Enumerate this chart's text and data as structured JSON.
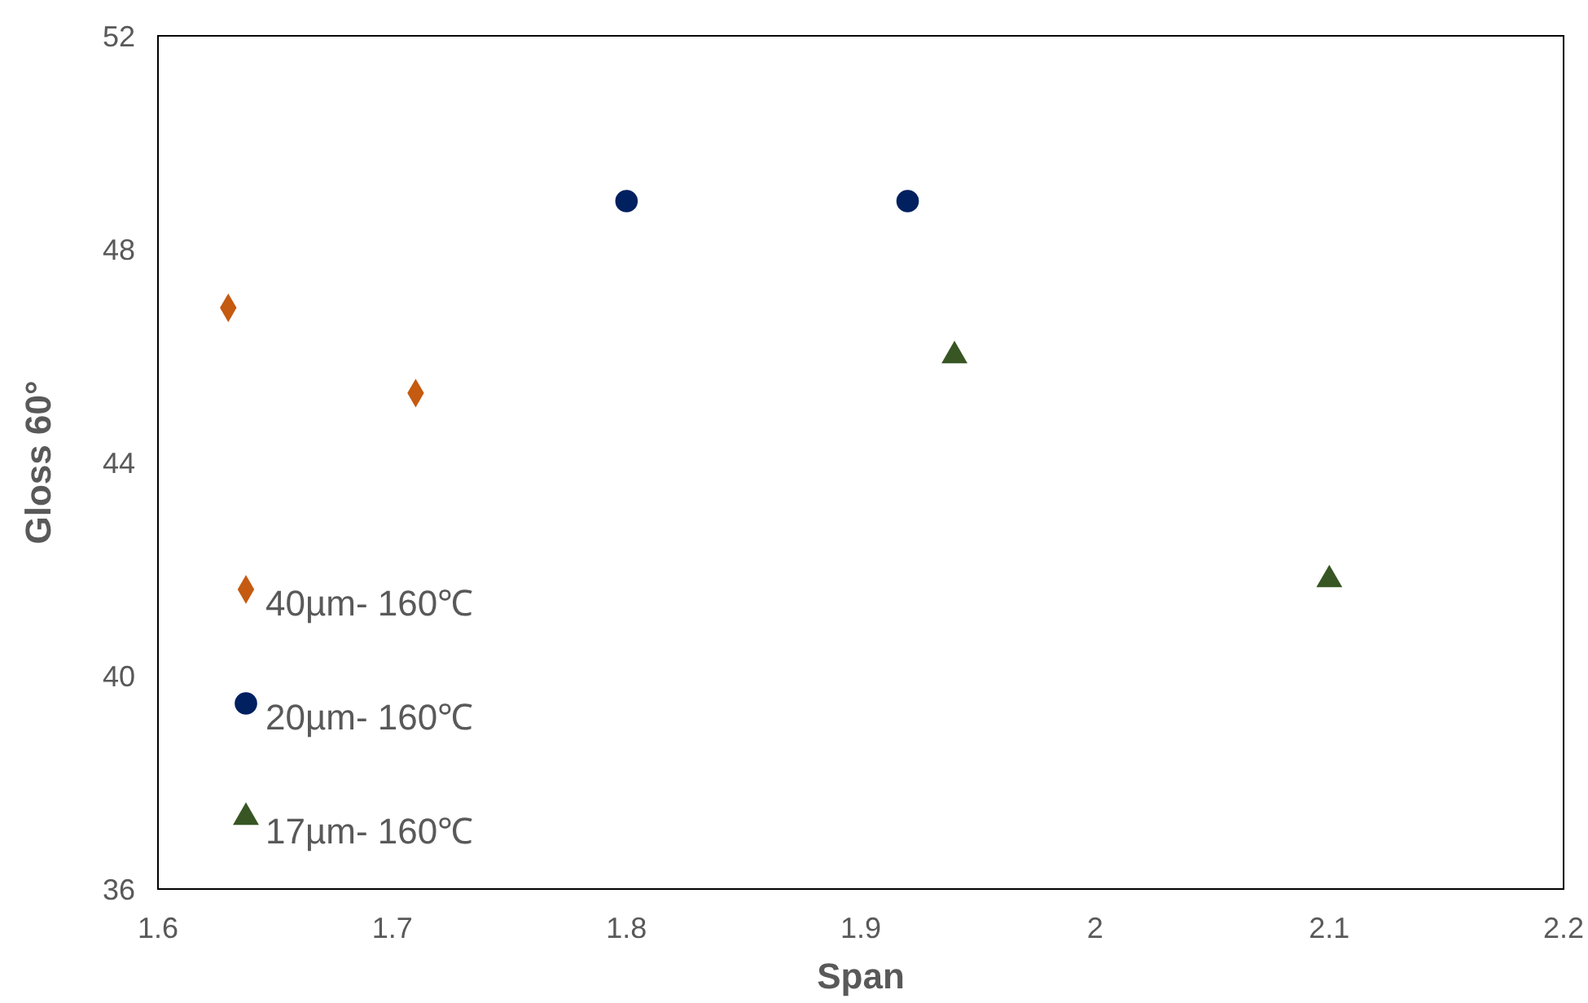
{
  "chart_data": {
    "type": "scatter",
    "xlabel": "Span",
    "ylabel": "Gloss 60°",
    "xlim": [
      1.6,
      2.2
    ],
    "xticks": [
      1.6,
      1.7,
      1.8,
      1.9,
      2,
      2.1,
      2.2
    ],
    "ylim": [
      36,
      52
    ],
    "yticks": [
      36,
      40,
      44,
      48,
      52
    ],
    "grid": false,
    "legend": "bottom left",
    "series": [
      {
        "name": "40µm- 160℃",
        "color": "#c55a11",
        "marker": "diamond",
        "x": [
          1.63,
          1.71
        ],
        "values": [
          46.9,
          45.3
        ]
      },
      {
        "name": "20µm- 160℃",
        "color": "#002060",
        "marker": "circle",
        "x": [
          1.8,
          1.92
        ],
        "values": [
          48.9,
          48.9
        ]
      },
      {
        "name": "17µm- 160℃",
        "color": "#375623",
        "marker": "triangle",
        "x": [
          1.94,
          2.1
        ],
        "values": [
          46.0,
          41.8
        ]
      }
    ]
  }
}
